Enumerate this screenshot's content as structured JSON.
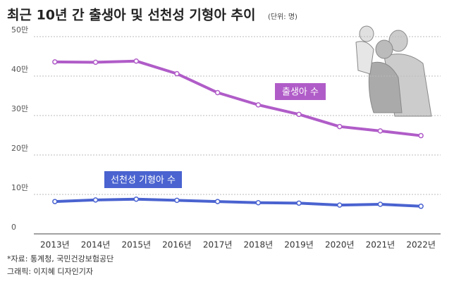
{
  "chart_data": {
    "type": "line",
    "title": "최근 10년 간 출생아 및 선천성 기형아 추이",
    "subtitle": "(단위: 명)",
    "categories": [
      "2013년",
      "2014년",
      "2015년",
      "2016년",
      "2017년",
      "2018년",
      "2019년",
      "2020년",
      "2021년",
      "2022년"
    ],
    "series": [
      {
        "name": "출생아 수",
        "color": "#b05cc8",
        "values": [
          43.6,
          43.5,
          43.8,
          40.6,
          35.8,
          32.7,
          30.3,
          27.2,
          26.1,
          24.9
        ]
      },
      {
        "name": "선천성 기형아 수",
        "color": "#4a63d0",
        "values": [
          8.2,
          8.6,
          8.8,
          8.5,
          8.2,
          7.9,
          7.8,
          7.3,
          7.5,
          7.0
        ]
      }
    ],
    "ylim": [
      0,
      50
    ],
    "yticks": [
      0,
      {
        "value": 10,
        "label": "10만"
      },
      {
        "value": 20,
        "label": "20만"
      },
      {
        "value": 30,
        "label": "30만"
      },
      {
        "value": 40,
        "label": "40만"
      },
      {
        "value": 50,
        "label": "50만"
      }
    ],
    "grid": true,
    "notes": [
      "*자료: 통계청, 국민건강보험공단",
      "그래픽: 이지혜 디자인기자"
    ]
  }
}
